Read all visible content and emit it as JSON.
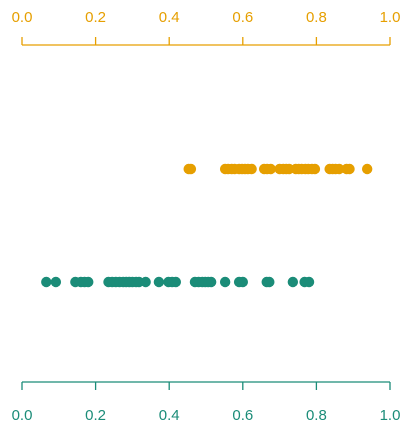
{
  "chart_data": {
    "type": "scatter",
    "xlim": [
      0,
      1
    ],
    "grid": false,
    "legend": "none",
    "axes": {
      "top": {
        "color": "#E69F00",
        "ticks": [
          0.0,
          0.2,
          0.4,
          0.6,
          0.8,
          1.0
        ],
        "tick_labels": [
          "0.0",
          "0.2",
          "0.4",
          "0.6",
          "0.8",
          "1.0"
        ]
      },
      "bottom": {
        "color": "#1B8C78",
        "ticks": [
          0.0,
          0.2,
          0.4,
          0.6,
          0.8,
          1.0
        ],
        "tick_labels": [
          "0.0",
          "0.2",
          "0.4",
          "0.6",
          "0.8",
          "1.0"
        ]
      }
    },
    "series": [
      {
        "color": "#E69F00",
        "axis": "top",
        "x": [
          0.453,
          0.459,
          0.552,
          0.56,
          0.57,
          0.578,
          0.59,
          0.598,
          0.606,
          0.614,
          0.624,
          0.658,
          0.666,
          0.676,
          0.7,
          0.71,
          0.718,
          0.726,
          0.744,
          0.752,
          0.76,
          0.77,
          0.778,
          0.788,
          0.796,
          0.836,
          0.844,
          0.852,
          0.862,
          0.882,
          0.89,
          0.938
        ]
      },
      {
        "color": "#1B8C78",
        "axis": "bottom",
        "x": [
          0.066,
          0.092,
          0.145,
          0.16,
          0.17,
          0.18,
          0.235,
          0.245,
          0.255,
          0.265,
          0.275,
          0.283,
          0.292,
          0.3,
          0.31,
          0.318,
          0.336,
          0.372,
          0.398,
          0.408,
          0.418,
          0.47,
          0.48,
          0.49,
          0.498,
          0.506,
          0.514,
          0.552,
          0.59,
          0.6,
          0.665,
          0.672,
          0.736,
          0.768,
          0.78
        ]
      }
    ]
  }
}
